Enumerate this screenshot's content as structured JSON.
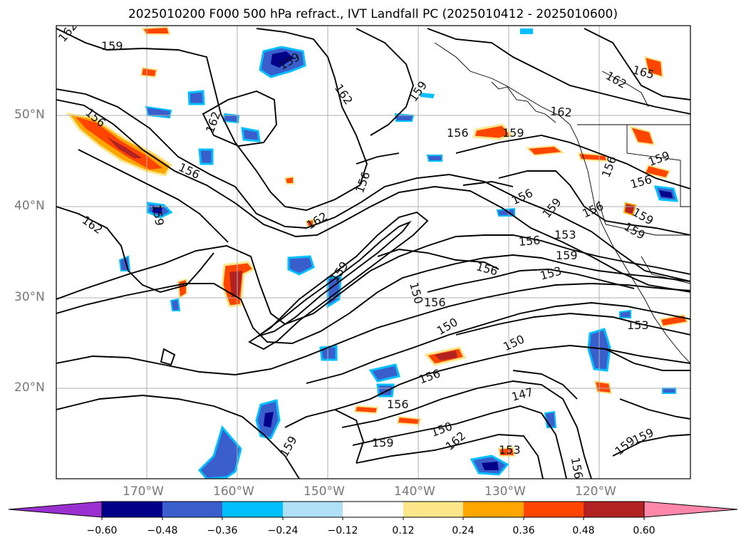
{
  "title": "2025010200 F000 500 hPa refract., IVT Landfall PC (2025010412 - 2025010600)",
  "lat_labels": [
    "50°N",
    "40°N",
    "30°N",
    "20°N"
  ],
  "lon_labels": [
    "170°W",
    "160°W",
    "150°W",
    "140°W",
    "130°W",
    "120°W"
  ],
  "colorbar": {
    "ticks": [
      "−0.60",
      "−0.48",
      "−0.36",
      "−0.24",
      "−0.12",
      "0.12",
      "0.24",
      "0.36",
      "0.48",
      "0.60"
    ],
    "colors": [
      "#9b30d0",
      "#00008b",
      "#3a5fcd",
      "#00bfff",
      "#b0e0f8",
      "#ffffff",
      "#fde68a",
      "#ffa500",
      "#ff4500",
      "#b22222",
      "#ff88aa"
    ]
  },
  "contour_labels": [
    "162",
    "159",
    "159",
    "165",
    "162",
    "159",
    "162",
    "156",
    "162",
    "159",
    "156",
    "159",
    "156",
    "162",
    "156",
    "156",
    "159",
    "156",
    "159",
    "159",
    "162",
    "156",
    "162",
    "156",
    "156",
    "159",
    "153",
    "156",
    "153",
    "159",
    "159",
    "150",
    "156",
    "150",
    "153",
    "150",
    "156",
    "147",
    "156",
    "159",
    "159",
    "162",
    "150",
    "153",
    "156",
    "159",
    "159"
  ],
  "colors": {
    "contour": "#000000",
    "grid": "#b0b0b0",
    "axis_label": "#777777"
  }
}
